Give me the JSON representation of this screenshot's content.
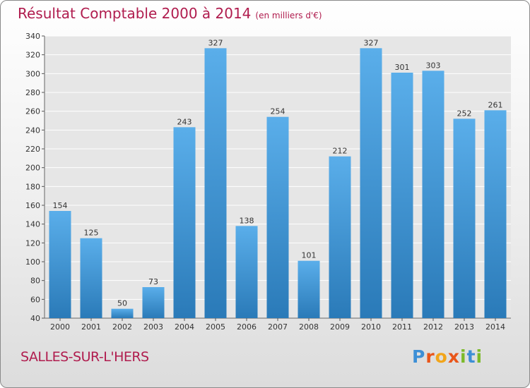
{
  "title": "Résultat Comptable 2000 à 2014",
  "unit_note": "(en milliers d'€)",
  "city": "SALLES-SUR-L'HERS",
  "logo": "Proxiti",
  "colors": {
    "title": "#b01c4e",
    "bar_top": "#5aaeea",
    "bar_bottom": "#2a7ab8",
    "logo_letters": [
      "#3d8fd6",
      "#e9561a",
      "#f2a51a",
      "#e9561a",
      "#7cba2a",
      "#3d8fd6",
      "#7cba2a"
    ]
  },
  "chart_data": {
    "type": "bar",
    "categories": [
      "2000",
      "2001",
      "2002",
      "2003",
      "2004",
      "2005",
      "2006",
      "2007",
      "2008",
      "2009",
      "2010",
      "2011",
      "2012",
      "2013",
      "2014"
    ],
    "values": [
      154,
      125,
      50,
      73,
      243,
      327,
      138,
      254,
      101,
      212,
      327,
      301,
      303,
      252,
      261
    ],
    "ylim": [
      40,
      340
    ],
    "yticks": [
      40,
      60,
      80,
      100,
      120,
      140,
      160,
      180,
      200,
      220,
      240,
      260,
      280,
      300,
      320,
      340
    ],
    "grid": true,
    "data_labels": true
  }
}
